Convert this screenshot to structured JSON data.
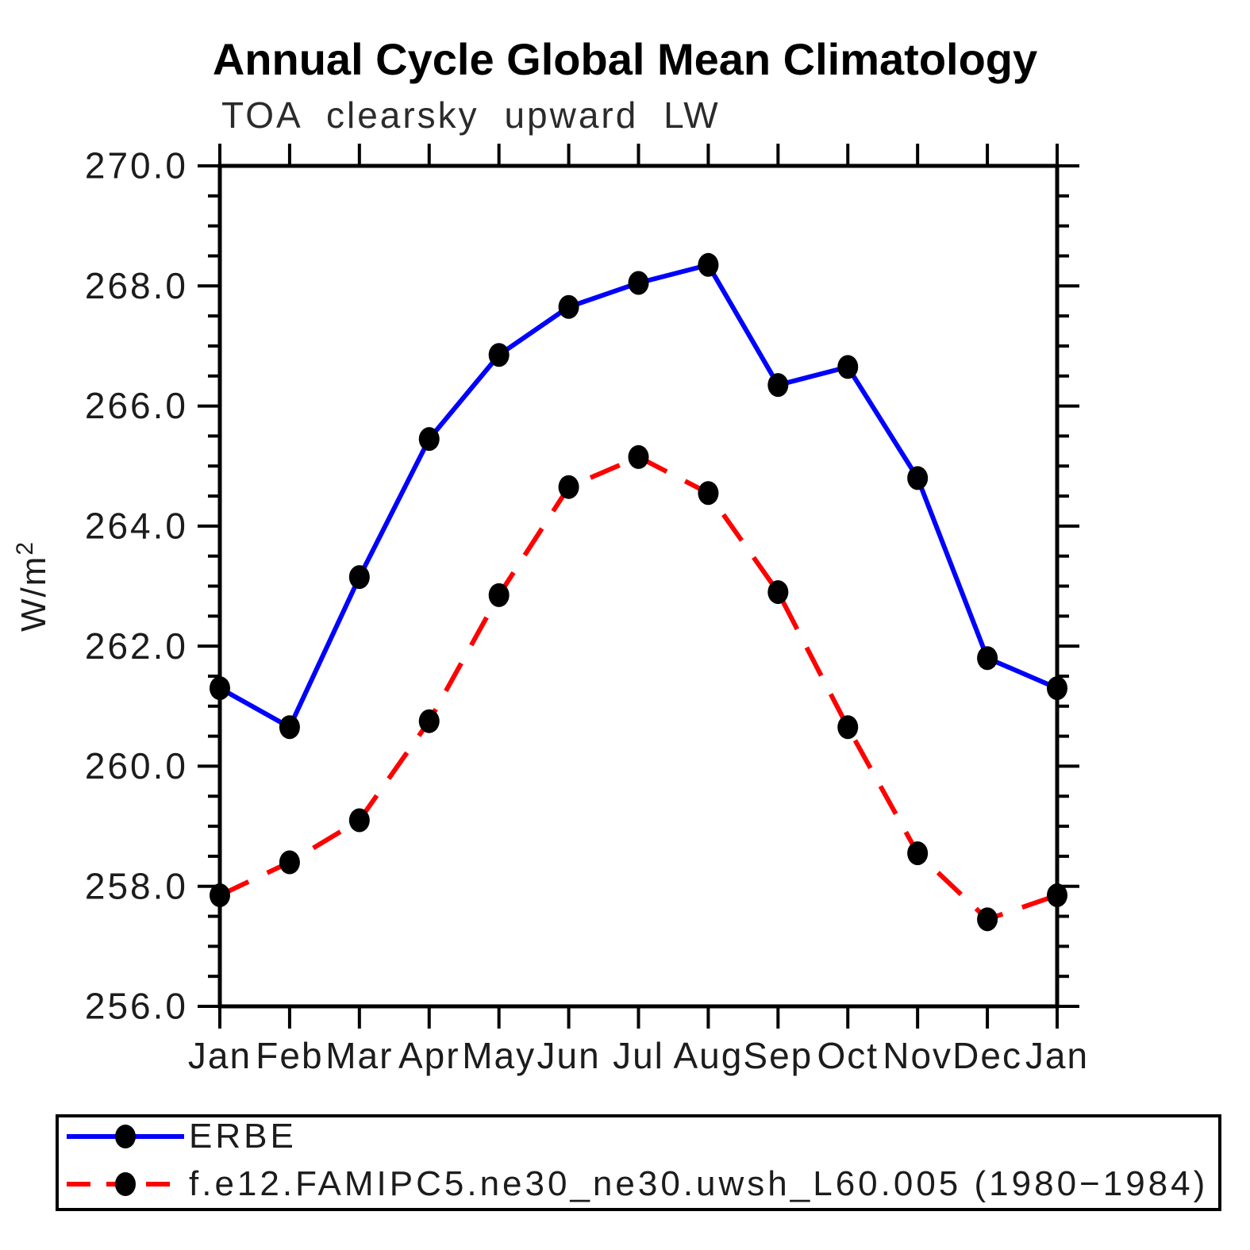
{
  "title": "Annual Cycle Global Mean Climatology",
  "subtitle": "TOA clearsky upward LW",
  "y_axis": {
    "label_base": "W/m",
    "label_exponent": "2",
    "tick_labels": [
      "270.0",
      "268.0",
      "266.0",
      "264.0",
      "262.0",
      "260.0",
      "258.0",
      "256.0"
    ]
  },
  "legend": {
    "entries": [
      {
        "label": "ERBE",
        "color": "#0000ff",
        "style": "solid"
      },
      {
        "label": "f.e12.FAMIPC5.ne30_ne30.uwsh_L60.005 (1980−1984)",
        "color": "#ff0000",
        "style": "dashed"
      }
    ]
  },
  "colors": {
    "erbe_line": "#0000ff",
    "model_line": "#ff0000",
    "marker": "#000000",
    "axis": "#000000"
  },
  "chart_data": {
    "type": "line",
    "title": "Annual Cycle Global Mean Climatology",
    "subtitle": "TOA clearsky upward LW",
    "ylabel": "W/m²",
    "xlabel": "",
    "categories": [
      "Jan",
      "Feb",
      "Mar",
      "Apr",
      "May",
      "Jun",
      "Jul",
      "Aug",
      "Sep",
      "Oct",
      "Nov",
      "Dec",
      "Jan"
    ],
    "series": [
      {
        "name": "ERBE",
        "color": "#0000ff",
        "line_style": "solid",
        "marker": "black-dot",
        "values": [
          261.3,
          260.65,
          263.15,
          265.45,
          266.85,
          267.65,
          268.05,
          268.35,
          266.35,
          266.65,
          264.8,
          261.8,
          261.3
        ]
      },
      {
        "name": "f.e12.FAMIPC5.ne30_ne30.uwsh_L60.005 (1980−1984)",
        "color": "#ff0000",
        "line_style": "dashed",
        "marker": "black-dot",
        "values": [
          257.85,
          258.4,
          259.1,
          260.75,
          262.85,
          264.65,
          265.15,
          264.55,
          262.9,
          260.65,
          258.55,
          257.45,
          257.85
        ]
      }
    ],
    "ylim": [
      256.0,
      270.0
    ],
    "y_major_step": 2.0,
    "y_minor_step": 0.5,
    "grid": false,
    "legend_position": "bottom-box"
  }
}
